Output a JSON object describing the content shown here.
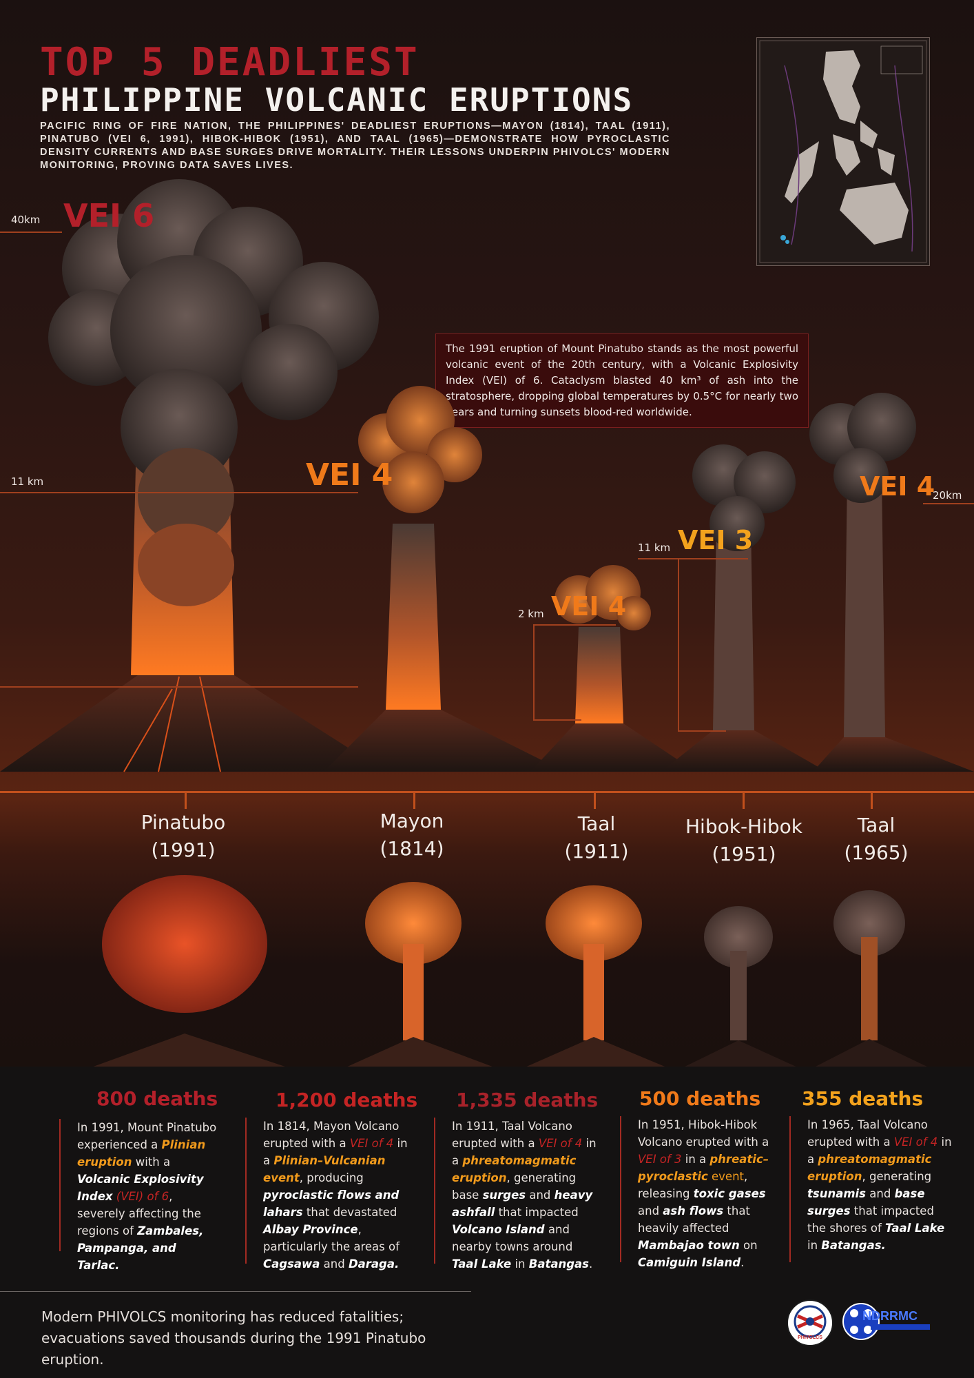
{
  "header": {
    "title_line1": "TOP 5 DEADLIEST",
    "title_line2": "PHILIPPINE VOLCANIC ERUPTIONS",
    "intro": "Pacific Ring of Fire nation, the Philippines' deadliest eruptions—Mayon (1814), Taal (1911), Pinatubo (VEI 6, 1991), Hibok-Hibok (1951), and Taal (1965)—demonstrate how pyroclastic density currents and base surges drive mortality. Their lessons underpin PHIVOLCS' modern monitoring, proving data saves lives."
  },
  "callout": "The 1991 eruption of Mount Pinatubo stands as the most powerful volcanic event of the 20th century, with a Volcanic Explosivity Index (VEI) of 6. Cataclysm blasted 40 km³ of ash into the stratosphere, dropping global temperatures by 0.5°C for nearly two years and turning sunsets blood-red worldwide.",
  "colors": {
    "deep_red": "#b3202a",
    "red": "#c42424",
    "orange": "#f07a1a",
    "amber": "#f3a21d",
    "bg": "#17100e"
  },
  "altitudes": {
    "pinatubo_top": "40km",
    "pinatubo_mid": "11 km",
    "taal1911": "2 km",
    "hibok": "11 km",
    "taal1965": "20km"
  },
  "eruptions": [
    {
      "vei": "VEI 6",
      "name": "Pinatubo",
      "year": "(1991)",
      "deaths": "800 deaths",
      "color": "#b3202a"
    },
    {
      "vei": "VEI 4",
      "name": "Mayon",
      "year": "(1814)",
      "deaths": "1,200 deaths",
      "color": "#c42424"
    },
    {
      "vei": "VEI 4",
      "name": "Taal",
      "year": "(1911)",
      "deaths": "1,335 deaths",
      "color": "#a8222a"
    },
    {
      "vei": "VEI 3",
      "name": "Hibok-Hibok",
      "year": "(1951)",
      "deaths": "500 deaths",
      "color": "#f07a1a"
    },
    {
      "vei": "VEI 4",
      "name": "Taal",
      "year": "(1965)",
      "deaths": "355 deaths",
      "color": "#f3a21d"
    }
  ],
  "descriptions": {
    "pinatubo": {
      "a": "In 1991, Mount Pinatubo experienced a ",
      "b": "Plinian eruption",
      "c": " with a ",
      "d": "Volcanic Explosivity Index",
      "e": " (VEI) of 6",
      "f": ", severely affecting the regions of ",
      "g": "Zambales, Pampanga, and Tarlac."
    },
    "mayon": {
      "a": "In 1814, Mayon Volcano erupted with a ",
      "b": "VEI of 4",
      "c": " in a ",
      "d": "Plinian–Vulcanian event",
      "e": ", producing ",
      "f": "pyroclastic flows and lahars",
      "g": " that devastated ",
      "h": "Albay Province",
      "i": ", particularly the areas of ",
      "j": "Cagsawa",
      "k": " and ",
      "l": "Daraga."
    },
    "taal1911": {
      "a": "In 1911, Taal Volcano erupted with a ",
      "b": "VEI of 4",
      "c": " in a ",
      "d": "phreatomagmatic eruption",
      "e": ", generating base ",
      "f": "surges",
      "g": " and ",
      "h": "heavy ashfall",
      "i": " that impacted ",
      "j": "Volcano Island",
      "k": " and nearby towns around ",
      "l": "Taal Lake",
      "m": " in ",
      "n": "Batangas",
      "o": "."
    },
    "hibok": {
      "a": "In 1951, Hibok-Hibok Volcano erupted with a ",
      "b": "VEI of 3",
      "c": " in a ",
      "d": "phreatic–pyroclastic",
      "e": " event",
      "f": ", releasing ",
      "g": "toxic gases",
      "h": " and ",
      "i": "ash flows",
      "j": " that heavily affected ",
      "k": "Mambajao town",
      "l": " on ",
      "m": "Camiguin Island",
      "n": "."
    },
    "taal1965": {
      "a": "In 1965, Taal Volcano erupted with a ",
      "b": "VEI of 4",
      "c": " in a ",
      "d": "phreatomagmatic eruption",
      "e": ", generating ",
      "f": "tsunamis",
      "g": " and ",
      "h": "base surges",
      "i": " that impacted the shores of ",
      "j": "Taal Lake",
      "k": " in ",
      "l": "Batangas."
    }
  },
  "footer": "Modern PHIVOLCS monitoring has reduced fatalities; evacuations saved thousands during the 1991 Pinatubo eruption.",
  "logos": {
    "phivolcs": "PHIVOLCS",
    "ndrrmc": "NDRRMC"
  }
}
